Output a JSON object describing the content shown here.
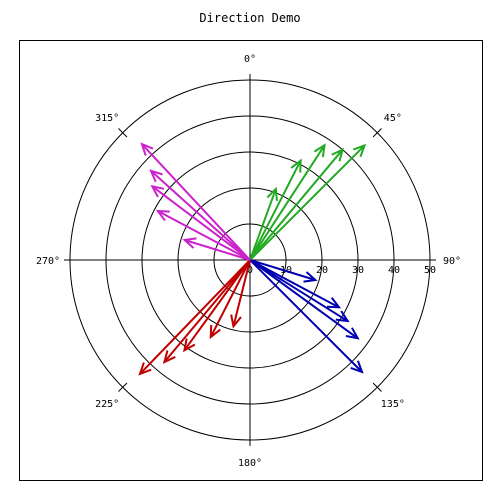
{
  "chart_data": {
    "type": "polar-vector",
    "title": "Direction Demo",
    "radial_ticks": [
      0,
      10,
      20,
      30,
      40,
      50
    ],
    "radial_max": 50,
    "angle_labels": [
      {
        "deg": 0,
        "label": "0°"
      },
      {
        "deg": 45,
        "label": "45°"
      },
      {
        "deg": 90,
        "label": "90°"
      },
      {
        "deg": 135,
        "label": "135°"
      },
      {
        "deg": 180,
        "label": "180°"
      },
      {
        "deg": 225,
        "label": "225°"
      },
      {
        "deg": 270,
        "label": "270°"
      },
      {
        "deg": 315,
        "label": "315°"
      }
    ],
    "angle_tick_step": 45,
    "series": [
      {
        "color": "#22aa22",
        "vectors": [
          {
            "angle": 20,
            "magnitude": 21
          },
          {
            "angle": 27,
            "magnitude": 31
          },
          {
            "angle": 33,
            "magnitude": 38
          },
          {
            "angle": 40,
            "magnitude": 40
          },
          {
            "angle": 45,
            "magnitude": 45
          }
        ]
      },
      {
        "color": "#0000b0",
        "vectors": [
          {
            "angle": 107,
            "magnitude": 19
          },
          {
            "angle": 118,
            "magnitude": 28
          },
          {
            "angle": 122,
            "magnitude": 32
          },
          {
            "angle": 126,
            "magnitude": 37
          },
          {
            "angle": 135,
            "magnitude": 44
          }
        ]
      },
      {
        "color": "#c00000",
        "vectors": [
          {
            "angle": 194,
            "magnitude": 19
          },
          {
            "angle": 207,
            "magnitude": 24
          },
          {
            "angle": 216,
            "magnitude": 31
          },
          {
            "angle": 220,
            "magnitude": 37
          },
          {
            "angle": 224,
            "magnitude": 44
          }
        ]
      },
      {
        "color": "#cc22cc",
        "vectors": [
          {
            "angle": 287,
            "magnitude": 19
          },
          {
            "angle": 298,
            "magnitude": 29
          },
          {
            "angle": 307,
            "magnitude": 34
          },
          {
            "angle": 312,
            "magnitude": 37
          },
          {
            "angle": 317,
            "magnitude": 44
          }
        ]
      }
    ]
  }
}
